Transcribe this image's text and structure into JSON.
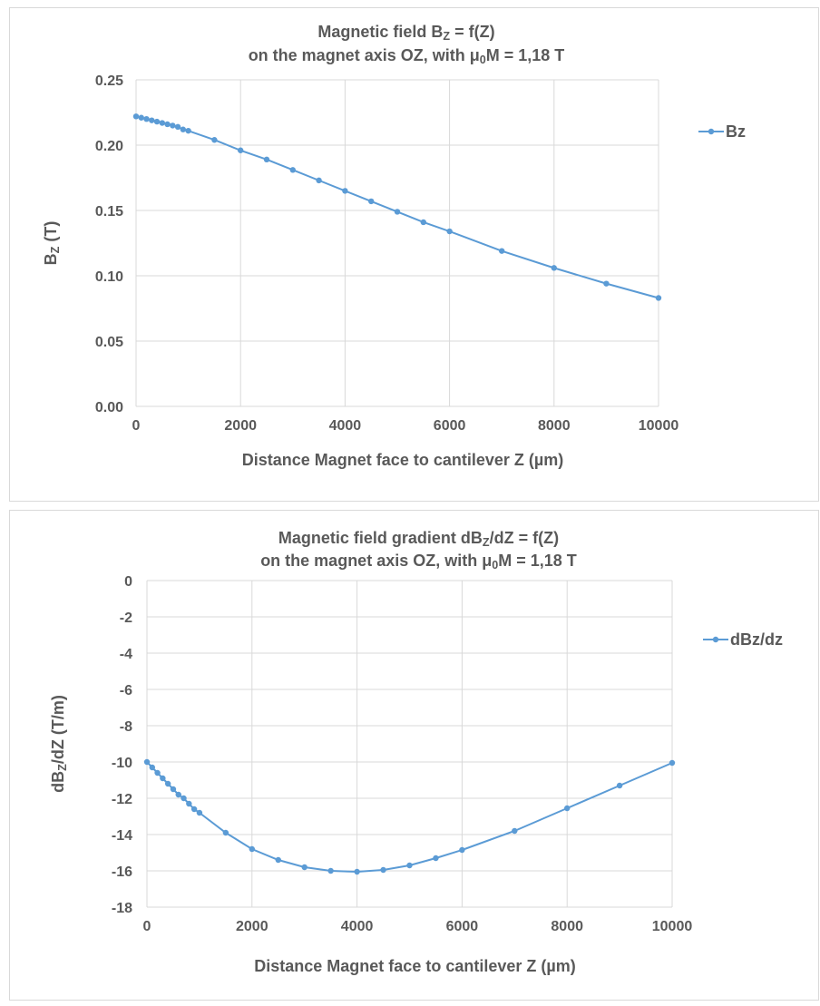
{
  "chart_data": [
    {
      "type": "line",
      "title": [
        [
          "Magnetic field B",
          "Z",
          " = f(Z)"
        ],
        [
          "on the magnet axis OZ, with  μ",
          "0",
          "M = 1,18 T"
        ]
      ],
      "x_label": "Distance Magnet face to cantilever Z (µm)",
      "y_label": [
        "B",
        "Z",
        " (T)"
      ],
      "x": [
        0,
        100,
        200,
        300,
        400,
        500,
        600,
        700,
        800,
        900,
        1000,
        1500,
        2000,
        2500,
        3000,
        3500,
        4000,
        4500,
        5000,
        5500,
        6000,
        7000,
        8000,
        9000,
        10000
      ],
      "series": [
        {
          "name": "Bz",
          "color": "#5b9bd5",
          "values": [
            0.222,
            0.221,
            0.22,
            0.219,
            0.218,
            0.217,
            0.216,
            0.215,
            0.214,
            0.212,
            0.211,
            0.204,
            0.196,
            0.189,
            0.181,
            0.173,
            0.165,
            0.157,
            0.149,
            0.141,
            0.134,
            0.119,
            0.106,
            0.094,
            0.083
          ]
        }
      ],
      "xlim": [
        0,
        10000
      ],
      "xticks": [
        0,
        2000,
        4000,
        6000,
        8000,
        10000
      ],
      "ylim": [
        0,
        0.25
      ],
      "yticks": [
        {
          "value": 0,
          "label": "0.00"
        },
        0.05,
        {
          "value": 0.1,
          "label": "0.10"
        },
        0.15,
        {
          "value": 0.2,
          "label": "0.20"
        },
        0.25
      ],
      "grid": true,
      "legend": "right"
    },
    {
      "type": "line",
      "title": [
        [
          "Magnetic field gradient dB",
          "Z",
          "/dZ = f(Z)"
        ],
        [
          "on the magnet axis OZ, with  μ",
          "0",
          "M = 1,18 T"
        ]
      ],
      "x_label": "Distance Magnet face to cantilever Z (µm)",
      "y_label": [
        "dB",
        "Z",
        "/dZ    (T/m)"
      ],
      "x": [
        0,
        100,
        200,
        300,
        400,
        500,
        600,
        700,
        800,
        900,
        1000,
        1500,
        2000,
        2500,
        3000,
        3500,
        4000,
        4500,
        5000,
        5500,
        6000,
        7000,
        8000,
        9000,
        10000
      ],
      "series": [
        {
          "name": "dBz/dz",
          "color": "#5b9bd5",
          "values": [
            -10.0,
            -10.3,
            -10.6,
            -10.9,
            -11.2,
            -11.5,
            -11.8,
            -12.0,
            -12.3,
            -12.6,
            -12.8,
            -13.9,
            -14.8,
            -15.4,
            -15.8,
            -16.0,
            -16.05,
            -15.95,
            -15.7,
            -15.3,
            -14.85,
            -13.8,
            -12.55,
            -11.3,
            -10.05
          ]
        }
      ],
      "xlim": [
        0,
        10000
      ],
      "xticks": [
        0,
        2000,
        4000,
        6000,
        8000,
        10000
      ],
      "ylim": [
        -18,
        0
      ],
      "yticks": [
        0,
        -2,
        -4,
        -6,
        -8,
        -10,
        -12,
        -14,
        -16,
        -18
      ],
      "grid": true,
      "legend": "right"
    }
  ]
}
